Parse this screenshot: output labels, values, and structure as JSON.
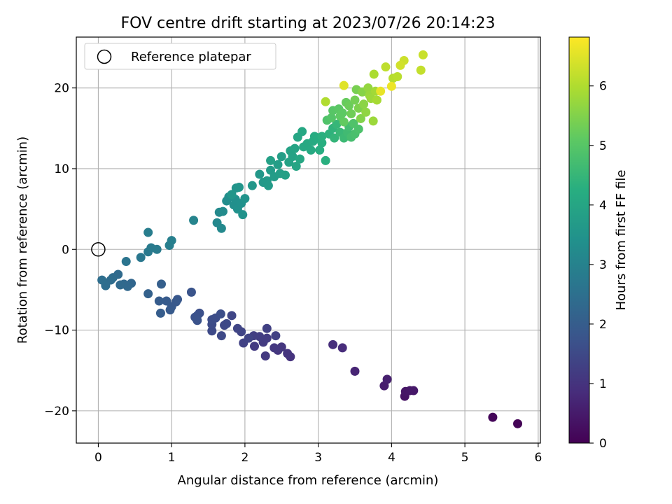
{
  "chart_data": {
    "type": "scatter",
    "title": "FOV centre drift starting at 2023/07/26 20:14:23",
    "xlabel": "Angular distance from reference (arcmin)",
    "ylabel": "Rotation from reference (arcmin)",
    "xlim": [
      -0.3,
      6.03
    ],
    "ylim": [
      -24.0,
      26.3
    ],
    "xticks": [
      0,
      1,
      2,
      3,
      4,
      5,
      6
    ],
    "yticks": [
      -20,
      -10,
      0,
      10,
      20
    ],
    "xtick_labels": [
      "0",
      "1",
      "2",
      "3",
      "4",
      "5",
      "6"
    ],
    "ytick_labels": [
      "−20",
      "−10",
      "0",
      "10",
      "20"
    ],
    "grid": true,
    "legend": {
      "entries": [
        "Reference platepar"
      ],
      "placement": "top-left"
    },
    "colorbar": {
      "label": "Hours from first FF file",
      "range": [
        0,
        6.82
      ],
      "ticks": [
        0,
        1,
        2,
        3,
        4,
        5,
        6
      ],
      "tick_labels": [
        "0",
        "1",
        "2",
        "3",
        "4",
        "5",
        "6"
      ],
      "colormap": "viridis"
    },
    "reference_point": {
      "x": 0,
      "y": 0,
      "label": "Reference platepar"
    },
    "points": [
      {
        "x": 5.72,
        "y": -21.6,
        "c": 0.05
      },
      {
        "x": 5.38,
        "y": -20.8,
        "c": 0.1
      },
      {
        "x": 4.18,
        "y": -18.2,
        "c": 0.35
      },
      {
        "x": 4.19,
        "y": -17.6,
        "c": 0.4
      },
      {
        "x": 4.25,
        "y": -17.5,
        "c": 0.42
      },
      {
        "x": 4.3,
        "y": -17.5,
        "c": 0.45
      },
      {
        "x": 3.9,
        "y": -16.9,
        "c": 0.55
      },
      {
        "x": 3.94,
        "y": -16.1,
        "c": 0.6
      },
      {
        "x": 3.5,
        "y": -15.1,
        "c": 0.7
      },
      {
        "x": 3.33,
        "y": -12.2,
        "c": 0.85
      },
      {
        "x": 3.2,
        "y": -11.8,
        "c": 0.9
      },
      {
        "x": 2.62,
        "y": -13.3,
        "c": 1.0
      },
      {
        "x": 2.58,
        "y": -12.9,
        "c": 1.02
      },
      {
        "x": 2.45,
        "y": -12.5,
        "c": 1.05
      },
      {
        "x": 2.5,
        "y": -12.1,
        "c": 1.08
      },
      {
        "x": 2.4,
        "y": -12.2,
        "c": 1.1
      },
      {
        "x": 2.28,
        "y": -13.2,
        "c": 1.12
      },
      {
        "x": 2.13,
        "y": -12.0,
        "c": 1.15
      },
      {
        "x": 2.25,
        "y": -11.5,
        "c": 1.18
      },
      {
        "x": 2.3,
        "y": -11.0,
        "c": 1.2
      },
      {
        "x": 2.2,
        "y": -10.8,
        "c": 1.22
      },
      {
        "x": 2.12,
        "y": -10.7,
        "c": 1.25
      },
      {
        "x": 2.42,
        "y": -10.7,
        "c": 1.28
      },
      {
        "x": 2.3,
        "y": -9.8,
        "c": 1.3
      },
      {
        "x": 1.98,
        "y": -11.6,
        "c": 1.32
      },
      {
        "x": 2.05,
        "y": -11.0,
        "c": 1.35
      },
      {
        "x": 1.95,
        "y": -10.2,
        "c": 1.38
      },
      {
        "x": 1.9,
        "y": -9.8,
        "c": 1.4
      },
      {
        "x": 1.82,
        "y": -8.2,
        "c": 1.42
      },
      {
        "x": 1.72,
        "y": -9.4,
        "c": 1.45
      },
      {
        "x": 1.75,
        "y": -9.2,
        "c": 1.48
      },
      {
        "x": 1.68,
        "y": -10.7,
        "c": 1.5
      },
      {
        "x": 1.55,
        "y": -10.1,
        "c": 1.52
      },
      {
        "x": 1.55,
        "y": -9.3,
        "c": 1.55
      },
      {
        "x": 1.55,
        "y": -8.7,
        "c": 1.58
      },
      {
        "x": 1.6,
        "y": -8.5,
        "c": 1.6
      },
      {
        "x": 1.67,
        "y": -8.0,
        "c": 1.62
      },
      {
        "x": 1.38,
        "y": -7.9,
        "c": 1.65
      },
      {
        "x": 1.35,
        "y": -8.2,
        "c": 1.68
      },
      {
        "x": 1.32,
        "y": -8.4,
        "c": 1.7
      },
      {
        "x": 1.35,
        "y": -8.8,
        "c": 1.72
      },
      {
        "x": 1.27,
        "y": -5.3,
        "c": 1.75
      },
      {
        "x": 1.08,
        "y": -6.2,
        "c": 1.85
      },
      {
        "x": 1.06,
        "y": -6.5,
        "c": 1.88
      },
      {
        "x": 1.0,
        "y": -7.1,
        "c": 1.9
      },
      {
        "x": 0.98,
        "y": -7.5,
        "c": 1.92
      },
      {
        "x": 0.93,
        "y": -6.4,
        "c": 1.95
      },
      {
        "x": 0.83,
        "y": -6.4,
        "c": 1.98
      },
      {
        "x": 0.85,
        "y": -7.9,
        "c": 2.0
      },
      {
        "x": 0.86,
        "y": -4.3,
        "c": 2.05
      },
      {
        "x": 0.68,
        "y": -5.5,
        "c": 2.1
      },
      {
        "x": 0.45,
        "y": -4.2,
        "c": 2.25
      },
      {
        "x": 0.4,
        "y": -4.6,
        "c": 2.28
      },
      {
        "x": 0.35,
        "y": -4.3,
        "c": 2.3
      },
      {
        "x": 0.3,
        "y": -4.4,
        "c": 2.32
      },
      {
        "x": 0.27,
        "y": -3.1,
        "c": 2.35
      },
      {
        "x": 0.2,
        "y": -3.5,
        "c": 2.38
      },
      {
        "x": 0.17,
        "y": -3.8,
        "c": 2.4
      },
      {
        "x": 0.1,
        "y": -4.5,
        "c": 2.42
      },
      {
        "x": 0.05,
        "y": -3.8,
        "c": 2.45
      },
      {
        "x": 0.38,
        "y": -1.5,
        "c": 2.6
      },
      {
        "x": 0.58,
        "y": -1.0,
        "c": 2.7
      },
      {
        "x": 0.68,
        "y": -0.3,
        "c": 2.75
      },
      {
        "x": 0.72,
        "y": 0.2,
        "c": 2.78
      },
      {
        "x": 0.8,
        "y": 0.0,
        "c": 2.8
      },
      {
        "x": 0.68,
        "y": 2.1,
        "c": 2.85
      },
      {
        "x": 0.97,
        "y": 0.5,
        "c": 2.88
      },
      {
        "x": 1.0,
        "y": 1.1,
        "c": 2.92
      },
      {
        "x": 1.3,
        "y": 3.6,
        "c": 3.05
      },
      {
        "x": 1.62,
        "y": 3.3,
        "c": 3.15
      },
      {
        "x": 1.68,
        "y": 2.6,
        "c": 3.18
      },
      {
        "x": 1.65,
        "y": 4.6,
        "c": 3.2
      },
      {
        "x": 1.7,
        "y": 4.7,
        "c": 3.25
      },
      {
        "x": 1.75,
        "y": 6.0,
        "c": 3.3
      },
      {
        "x": 1.78,
        "y": 6.5,
        "c": 3.32
      },
      {
        "x": 1.85,
        "y": 5.5,
        "c": 3.35
      },
      {
        "x": 1.87,
        "y": 6.2,
        "c": 3.38
      },
      {
        "x": 1.9,
        "y": 5.0,
        "c": 3.4
      },
      {
        "x": 1.95,
        "y": 5.7,
        "c": 3.42
      },
      {
        "x": 1.97,
        "y": 4.3,
        "c": 3.45
      },
      {
        "x": 2.0,
        "y": 6.3,
        "c": 3.48
      },
      {
        "x": 1.88,
        "y": 7.6,
        "c": 3.5
      },
      {
        "x": 1.92,
        "y": 7.7,
        "c": 3.52
      },
      {
        "x": 1.82,
        "y": 6.8,
        "c": 3.55
      },
      {
        "x": 2.1,
        "y": 7.9,
        "c": 3.58
      },
      {
        "x": 2.2,
        "y": 9.3,
        "c": 3.6
      },
      {
        "x": 2.25,
        "y": 8.3,
        "c": 3.62
      },
      {
        "x": 2.3,
        "y": 8.5,
        "c": 3.65
      },
      {
        "x": 2.32,
        "y": 7.9,
        "c": 3.68
      },
      {
        "x": 2.35,
        "y": 9.8,
        "c": 3.7
      },
      {
        "x": 2.4,
        "y": 9.0,
        "c": 3.72
      },
      {
        "x": 2.45,
        "y": 10.5,
        "c": 3.75
      },
      {
        "x": 2.48,
        "y": 9.4,
        "c": 3.78
      },
      {
        "x": 2.5,
        "y": 11.5,
        "c": 3.8
      },
      {
        "x": 2.55,
        "y": 9.2,
        "c": 3.82
      },
      {
        "x": 2.35,
        "y": 11.0,
        "c": 3.85
      },
      {
        "x": 2.6,
        "y": 10.8,
        "c": 3.88
      },
      {
        "x": 2.62,
        "y": 12.2,
        "c": 3.9
      },
      {
        "x": 2.65,
        "y": 11.5,
        "c": 3.92
      },
      {
        "x": 2.68,
        "y": 12.5,
        "c": 3.95
      },
      {
        "x": 2.7,
        "y": 10.3,
        "c": 3.98
      },
      {
        "x": 2.72,
        "y": 13.9,
        "c": 4.0
      },
      {
        "x": 2.75,
        "y": 11.2,
        "c": 4.02
      },
      {
        "x": 2.78,
        "y": 14.6,
        "c": 4.05
      },
      {
        "x": 2.8,
        "y": 12.7,
        "c": 4.08
      },
      {
        "x": 2.85,
        "y": 13.1,
        "c": 4.1
      },
      {
        "x": 2.9,
        "y": 12.3,
        "c": 4.12
      },
      {
        "x": 2.93,
        "y": 13.4,
        "c": 4.15
      },
      {
        "x": 2.95,
        "y": 14.0,
        "c": 4.18
      },
      {
        "x": 3.0,
        "y": 13.8,
        "c": 4.2
      },
      {
        "x": 3.02,
        "y": 12.3,
        "c": 4.22
      },
      {
        "x": 3.05,
        "y": 13.2,
        "c": 4.25
      },
      {
        "x": 3.1,
        "y": 11.0,
        "c": 4.28
      },
      {
        "x": 3.05,
        "y": 14.0,
        "c": 4.3
      },
      {
        "x": 3.15,
        "y": 14.3,
        "c": 4.35
      },
      {
        "x": 3.2,
        "y": 15.0,
        "c": 4.4
      },
      {
        "x": 3.22,
        "y": 13.8,
        "c": 4.45
      },
      {
        "x": 3.25,
        "y": 15.5,
        "c": 4.5
      },
      {
        "x": 3.3,
        "y": 14.5,
        "c": 4.55
      },
      {
        "x": 3.35,
        "y": 13.8,
        "c": 4.6
      },
      {
        "x": 3.4,
        "y": 14.5,
        "c": 4.65
      },
      {
        "x": 3.42,
        "y": 15.2,
        "c": 4.7
      },
      {
        "x": 3.45,
        "y": 13.9,
        "c": 4.75
      },
      {
        "x": 3.5,
        "y": 14.3,
        "c": 4.8
      },
      {
        "x": 3.55,
        "y": 14.9,
        "c": 4.85
      },
      {
        "x": 3.12,
        "y": 16.0,
        "c": 4.9
      },
      {
        "x": 3.18,
        "y": 16.3,
        "c": 4.95
      },
      {
        "x": 3.2,
        "y": 17.2,
        "c": 5.0
      },
      {
        "x": 3.28,
        "y": 17.4,
        "c": 5.05
      },
      {
        "x": 3.3,
        "y": 16.5,
        "c": 5.1
      },
      {
        "x": 3.35,
        "y": 15.8,
        "c": 5.15
      },
      {
        "x": 3.38,
        "y": 18.2,
        "c": 5.2
      },
      {
        "x": 3.42,
        "y": 17.8,
        "c": 5.25
      },
      {
        "x": 3.45,
        "y": 16.8,
        "c": 5.3
      },
      {
        "x": 3.5,
        "y": 18.5,
        "c": 5.35
      },
      {
        "x": 3.52,
        "y": 19.8,
        "c": 5.4
      },
      {
        "x": 3.55,
        "y": 17.5,
        "c": 5.45
      },
      {
        "x": 3.58,
        "y": 16.2,
        "c": 5.5
      },
      {
        "x": 3.6,
        "y": 19.5,
        "c": 5.55
      },
      {
        "x": 3.62,
        "y": 18.0,
        "c": 5.6
      },
      {
        "x": 3.65,
        "y": 17.0,
        "c": 5.65
      },
      {
        "x": 3.68,
        "y": 20.0,
        "c": 5.7
      },
      {
        "x": 3.7,
        "y": 19.1,
        "c": 5.75
      },
      {
        "x": 3.75,
        "y": 15.9,
        "c": 5.78
      },
      {
        "x": 3.72,
        "y": 18.7,
        "c": 5.8
      },
      {
        "x": 3.78,
        "y": 19.6,
        "c": 5.85
      },
      {
        "x": 3.8,
        "y": 18.5,
        "c": 5.9
      },
      {
        "x": 3.76,
        "y": 21.7,
        "c": 5.95
      },
      {
        "x": 3.1,
        "y": 18.3,
        "c": 6.0
      },
      {
        "x": 4.02,
        "y": 21.2,
        "c": 6.05
      },
      {
        "x": 4.08,
        "y": 21.4,
        "c": 6.1
      },
      {
        "x": 3.92,
        "y": 22.6,
        "c": 6.15
      },
      {
        "x": 4.4,
        "y": 22.2,
        "c": 6.2
      },
      {
        "x": 4.43,
        "y": 24.1,
        "c": 6.25
      },
      {
        "x": 4.17,
        "y": 23.4,
        "c": 6.3
      },
      {
        "x": 4.12,
        "y": 22.8,
        "c": 6.35
      },
      {
        "x": 3.35,
        "y": 20.3,
        "c": 6.5
      },
      {
        "x": 3.85,
        "y": 19.6,
        "c": 6.6
      },
      {
        "x": 4.0,
        "y": 20.2,
        "c": 6.65
      },
      {
        "x": 3.33,
        "y": 16.9,
        "c": 5.1
      },
      {
        "x": 3.48,
        "y": 15.6,
        "c": 4.9
      }
    ]
  }
}
